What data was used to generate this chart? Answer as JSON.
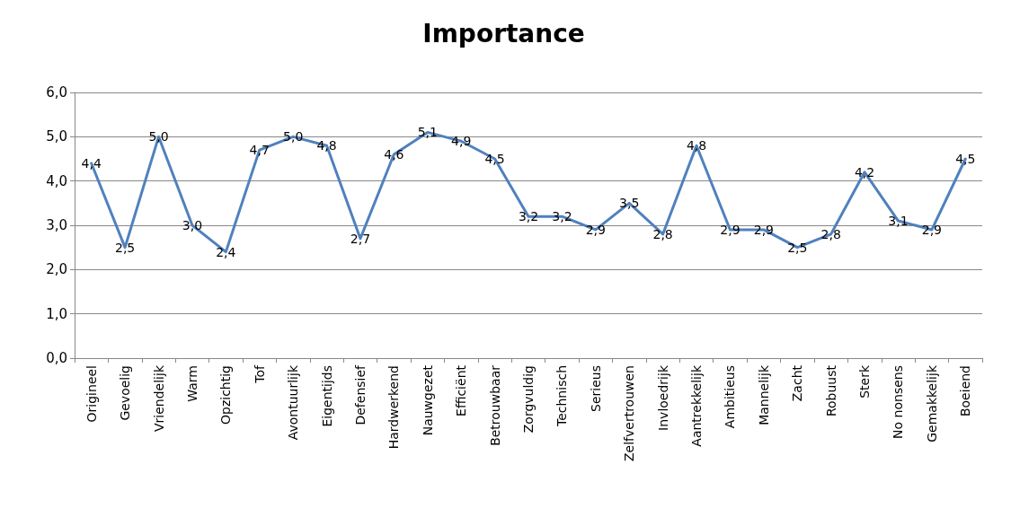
{
  "chart_data": {
    "type": "line",
    "title": "Importance",
    "categories": [
      "Origineel",
      "Gevoelig",
      "Vriendelijk",
      "Warm",
      "Opzichtig",
      "Tof",
      "Avontuurlijk",
      "Eigentijds",
      "Defensief",
      "Hardwerkend",
      "Nauwgezet",
      "Efficiënt",
      "Betrouwbaar",
      "Zorgvuldig",
      "Technisch",
      "Serieus",
      "Zelfvertrouwen",
      "Invloedrijk",
      "Aantrekkelijk",
      "Ambitieus",
      "Mannelijk",
      "Zacht",
      "Robuust",
      "Sterk",
      "No nonsens",
      "Gemakkelijk",
      "Boeiend"
    ],
    "series": [
      {
        "color": "#4f81bd",
        "values": [
          4.4,
          2.5,
          5.0,
          3.0,
          2.4,
          4.7,
          5.0,
          4.8,
          2.7,
          4.6,
          5.1,
          4.9,
          4.5,
          3.2,
          3.2,
          2.9,
          3.5,
          2.8,
          4.8,
          2.9,
          2.9,
          2.5,
          2.8,
          4.2,
          3.1,
          2.9,
          4.5
        ],
        "value_labels": [
          "4,4",
          "2,5",
          "5,0",
          "3,0",
          "2,4",
          "4,7",
          "5,0",
          "4,8",
          "2,7",
          "4,6",
          "5,1",
          "4,9",
          "4,5",
          "3,2",
          "3,2",
          "2,9",
          "3,5",
          "2,8",
          "4,8",
          "2,9",
          "2,9",
          "2,5",
          "2,8",
          "4,2",
          "3,1",
          "2,9",
          "4,5"
        ]
      }
    ],
    "ylim": [
      0,
      6
    ],
    "yticks": [
      {
        "value": 0,
        "label": "0,0"
      },
      {
        "value": 1,
        "label": "1,0"
      },
      {
        "value": 2,
        "label": "2,0"
      },
      {
        "value": 3,
        "label": "3,0"
      },
      {
        "value": 4,
        "label": "4,0"
      },
      {
        "value": 5,
        "label": "5,0"
      },
      {
        "value": 6,
        "label": "6,0"
      }
    ],
    "grid": "y",
    "marker": "none",
    "line_style": "solid"
  }
}
